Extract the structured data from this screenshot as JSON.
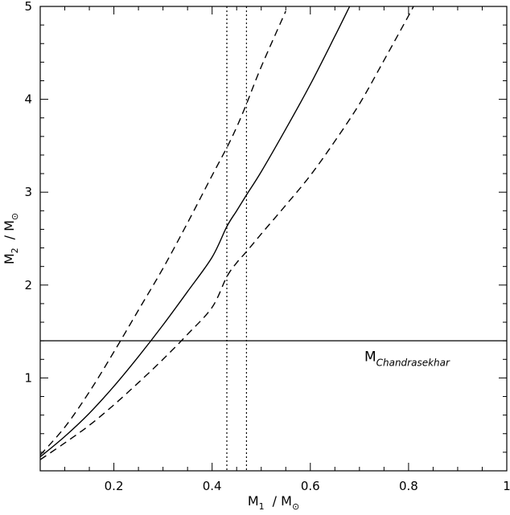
{
  "chart_data": {
    "type": "line",
    "title": "",
    "xlabel": {
      "main": "M",
      "sub": "1",
      "rest": "/  M",
      "sun": "⊙"
    },
    "ylabel": {
      "main": "M",
      "sub": "2",
      "rest": "/  M",
      "sun": "⊙"
    },
    "xlim": [
      0.05,
      1.0
    ],
    "ylim": [
      0.0,
      5.0
    ],
    "x_ticks": [
      0.2,
      0.4,
      0.6,
      0.8,
      1
    ],
    "x_tick_labels": [
      "0.2",
      "0.4",
      "0.6",
      "0.8",
      "1"
    ],
    "y_ticks": [
      1,
      2,
      3,
      4,
      5
    ],
    "y_tick_labels": [
      "1",
      "2",
      "3",
      "4",
      "5"
    ],
    "grid": false,
    "legend": "none",
    "series": [
      {
        "style": "dashed",
        "x": [
          0.05,
          0.1,
          0.15,
          0.2,
          0.25,
          0.3,
          0.35,
          0.4,
          0.43,
          0.45,
          0.47,
          0.5,
          0.55
        ],
        "y": [
          0.17,
          0.47,
          0.85,
          1.28,
          1.73,
          2.18,
          2.67,
          3.18,
          3.48,
          3.7,
          3.95,
          4.35,
          4.95
        ]
      },
      {
        "style": "solid",
        "x": [
          0.05,
          0.1,
          0.15,
          0.2,
          0.25,
          0.3,
          0.35,
          0.4,
          0.43,
          0.45,
          0.47,
          0.5,
          0.55,
          0.6,
          0.65,
          0.68
        ],
        "y": [
          0.15,
          0.37,
          0.62,
          0.91,
          1.23,
          1.57,
          1.93,
          2.3,
          2.63,
          2.8,
          2.97,
          3.22,
          3.68,
          4.16,
          4.68,
          5.0
        ]
      },
      {
        "style": "dashed",
        "x": [
          0.05,
          0.1,
          0.15,
          0.2,
          0.25,
          0.3,
          0.35,
          0.4,
          0.43,
          0.45,
          0.47,
          0.5,
          0.55,
          0.6,
          0.65,
          0.7,
          0.75,
          0.8,
          0.81
        ],
        "y": [
          0.12,
          0.3,
          0.49,
          0.71,
          0.95,
          1.2,
          1.47,
          1.76,
          2.09,
          2.24,
          2.36,
          2.55,
          2.86,
          3.18,
          3.55,
          3.95,
          4.42,
          4.9,
          5.0
        ]
      }
    ],
    "vlines": [
      {
        "x": 0.43,
        "style": "dotted"
      },
      {
        "x": 0.47,
        "style": "dotted"
      }
    ],
    "hlines": [
      {
        "y": 1.4,
        "style": "solid"
      }
    ],
    "annotations": [
      {
        "main": "M",
        "sub": "Chandrasekhar",
        "x": 0.71,
        "y": 1.18
      }
    ]
  }
}
